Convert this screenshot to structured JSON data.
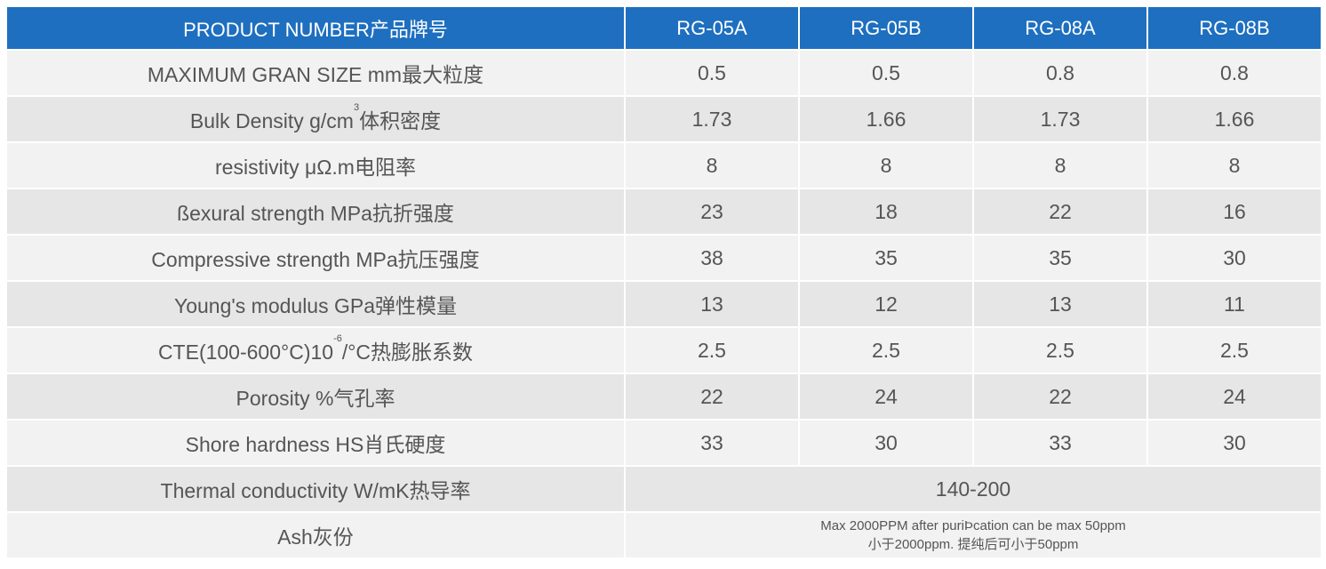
{
  "header": {
    "label": "PRODUCT NUMBER产品牌号",
    "products": [
      "RG-05A",
      "RG-05B",
      "RG-08A",
      "RG-08B"
    ]
  },
  "rows": [
    {
      "label": "MAXIMUM GRAN SIZE mm最大粒度",
      "values": [
        "0.5",
        "0.5",
        "0.8",
        "0.8"
      ]
    },
    {
      "label_pre": "Bulk Density g/cm",
      "label_sup": "3",
      "label_post": "体积密度",
      "values": [
        "1.73",
        "1.66",
        "1.73",
        "1.66"
      ]
    },
    {
      "label": "resistivity μΩ.m电阻率",
      "values": [
        "8",
        "8",
        "8",
        "8"
      ]
    },
    {
      "label": "ßexural strength MPa抗折强度",
      "values": [
        "23",
        "18",
        "22",
        "16"
      ]
    },
    {
      "label": "Compressive strength MPa抗压强度",
      "values": [
        "38",
        "35",
        "35",
        "30"
      ]
    },
    {
      "label": "Young's modulus GPa弹性模量",
      "values": [
        "13",
        "12",
        "13",
        "11"
      ]
    },
    {
      "label_pre": "CTE(100-600°C)10",
      "label_sup": "-6",
      "label_post": "/°C热膨胀系数",
      "values": [
        "2.5",
        "2.5",
        "2.5",
        "2.5"
      ]
    },
    {
      "label": "Porosity %气孔率",
      "values": [
        "22",
        "24",
        "22",
        "24"
      ]
    },
    {
      "label": "Shore hardness HS肖氏硬度",
      "values": [
        "33",
        "30",
        "33",
        "30"
      ]
    }
  ],
  "thermal": {
    "label": "Thermal conductivity W/mK热导率",
    "value": "140-200"
  },
  "ash": {
    "label": "Ash灰份",
    "line1": "Max 2000PPM after puriÞcation can be max 50ppm",
    "line2": "小于2000ppm. 提纯后可小于50ppm"
  }
}
